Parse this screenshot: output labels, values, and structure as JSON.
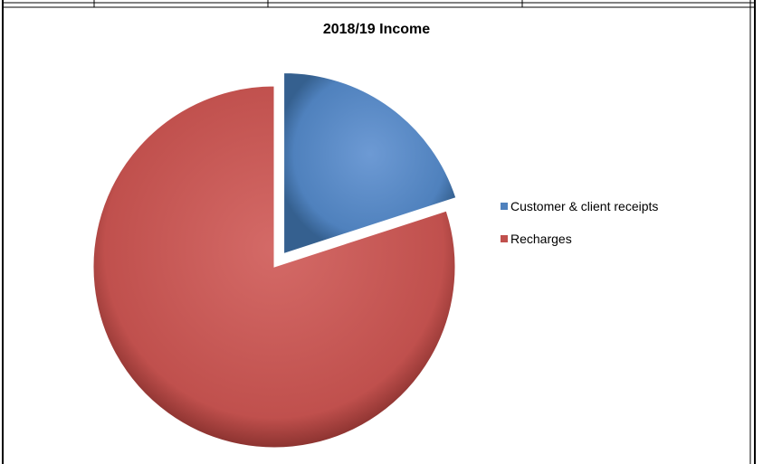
{
  "chart_data": {
    "type": "pie",
    "title": "2018/19 Income",
    "categories": [
      "Customer & client receipts",
      "Recharges"
    ],
    "values": [
      20,
      80
    ],
    "colors": [
      "#4f81bd",
      "#c0504d"
    ],
    "exploded": [
      "Customer & client receipts"
    ],
    "legend_position": "right"
  }
}
